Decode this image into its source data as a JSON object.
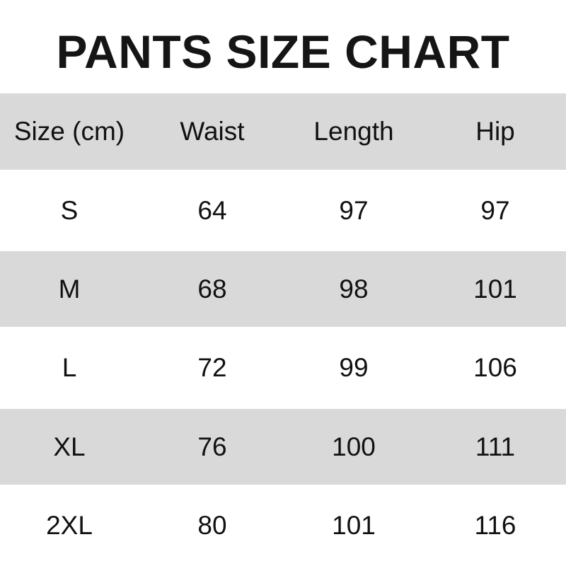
{
  "title": "PANTS SIZE CHART",
  "table": {
    "headers": [
      "Size (cm)",
      "Waist",
      "Length",
      "Hip"
    ],
    "rows": [
      [
        "S",
        "64",
        "97",
        "97"
      ],
      [
        "M",
        "68",
        "98",
        "101"
      ],
      [
        "L",
        "72",
        "99",
        "106"
      ],
      [
        "XL",
        "76",
        "100",
        "111"
      ],
      [
        "2XL",
        "80",
        "101",
        "116"
      ]
    ]
  },
  "colors": {
    "stripe": "#d9d9d9",
    "text": "#111111"
  }
}
